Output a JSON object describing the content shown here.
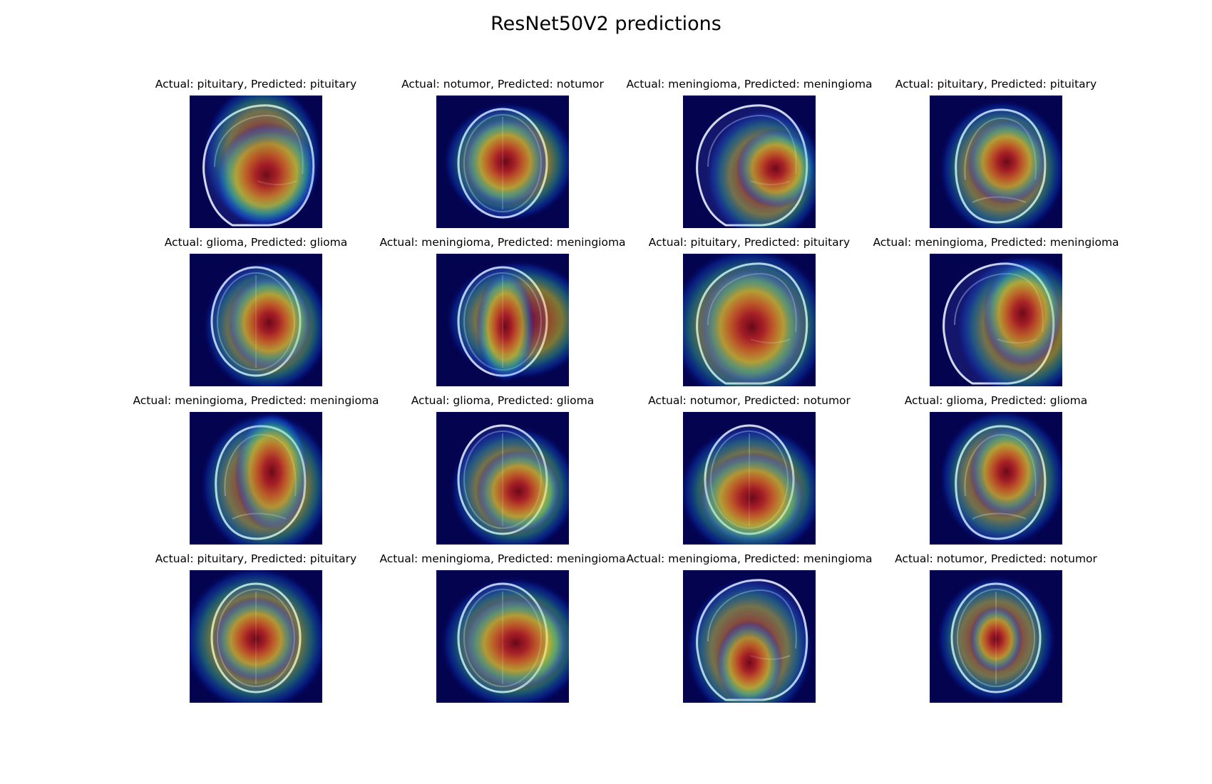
{
  "figure": {
    "title": "ResNet50V2 predictions",
    "panels": [
      {
        "title": "Actual: pituitary, Predicted: pituitary",
        "actual": "pituitary",
        "predicted": "pituitary",
        "view": "sagittal",
        "heat": [
          [
            0.58,
            0.6,
            0.38,
            0.4,
            30
          ],
          [
            0.55,
            0.45,
            0.45,
            0.55,
            0
          ]
        ]
      },
      {
        "title": "Actual: notumor, Predicted: notumor",
        "actual": "notumor",
        "predicted": "notumor",
        "view": "axial",
        "heat": [
          [
            0.52,
            0.5,
            0.32,
            0.34,
            0
          ],
          [
            0.55,
            0.5,
            0.5,
            0.45,
            0
          ]
        ]
      },
      {
        "title": "Actual: meningioma, Predicted: meningioma",
        "actual": "meningioma",
        "predicted": "meningioma",
        "view": "sagittal",
        "heat": [
          [
            0.7,
            0.55,
            0.3,
            0.3,
            0
          ],
          [
            0.62,
            0.6,
            0.45,
            0.5,
            0
          ]
        ]
      },
      {
        "title": "Actual: pituitary, Predicted: pituitary",
        "actual": "pituitary",
        "predicted": "pituitary",
        "view": "coronal",
        "heat": [
          [
            0.58,
            0.5,
            0.3,
            0.32,
            0
          ],
          [
            0.55,
            0.55,
            0.48,
            0.52,
            0
          ]
        ]
      },
      {
        "title": "Actual: glioma, Predicted: glioma",
        "actual": "glioma",
        "predicted": "glioma",
        "view": "axial",
        "heat": [
          [
            0.6,
            0.52,
            0.32,
            0.36,
            0
          ],
          [
            0.58,
            0.55,
            0.48,
            0.5,
            0
          ]
        ]
      },
      {
        "title": "Actual: meningioma, Predicted: meningioma",
        "actual": "meningioma",
        "predicted": "meningioma",
        "view": "axial",
        "heat": [
          [
            0.52,
            0.55,
            0.22,
            0.42,
            0
          ],
          [
            0.62,
            0.5,
            0.55,
            0.45,
            0
          ]
        ]
      },
      {
        "title": "Actual: pituitary, Predicted: pituitary",
        "actual": "pituitary",
        "predicted": "pituitary",
        "view": "sagittal",
        "heat": [
          [
            0.52,
            0.55,
            0.4,
            0.45,
            0
          ],
          [
            0.5,
            0.55,
            0.6,
            0.6,
            0
          ]
        ]
      },
      {
        "title": "Actual: meningioma, Predicted: meningioma",
        "actual": "meningioma",
        "predicted": "meningioma",
        "view": "sagittal",
        "heat": [
          [
            0.7,
            0.45,
            0.3,
            0.4,
            0
          ],
          [
            0.7,
            0.55,
            0.5,
            0.55,
            0
          ]
        ]
      },
      {
        "title": "Actual: meningioma, Predicted: meningioma",
        "actual": "meningioma",
        "predicted": "meningioma",
        "view": "coronal",
        "heat": [
          [
            0.62,
            0.45,
            0.28,
            0.45,
            0
          ],
          [
            0.58,
            0.55,
            0.5,
            0.55,
            0
          ]
        ]
      },
      {
        "title": "Actual: glioma, Predicted: glioma",
        "actual": "glioma",
        "predicted": "glioma",
        "view": "axial",
        "heat": [
          [
            0.62,
            0.6,
            0.32,
            0.32,
            0
          ],
          [
            0.58,
            0.58,
            0.48,
            0.48,
            0
          ]
        ]
      },
      {
        "title": "Actual: notumor, Predicted: notumor",
        "actual": "notumor",
        "predicted": "notumor",
        "view": "axial",
        "heat": [
          [
            0.52,
            0.65,
            0.4,
            0.35,
            0
          ],
          [
            0.52,
            0.6,
            0.55,
            0.5,
            0
          ]
        ]
      },
      {
        "title": "Actual: glioma, Predicted: glioma",
        "actual": "glioma",
        "predicted": "glioma",
        "view": "coronal",
        "heat": [
          [
            0.58,
            0.45,
            0.28,
            0.34,
            0
          ],
          [
            0.55,
            0.5,
            0.48,
            0.52,
            0
          ]
        ]
      },
      {
        "title": "Actual: pituitary, Predicted: pituitary",
        "actual": "pituitary",
        "predicted": "pituitary",
        "view": "axial",
        "heat": [
          [
            0.5,
            0.52,
            0.32,
            0.32,
            0
          ],
          [
            0.5,
            0.52,
            0.55,
            0.55,
            0
          ]
        ]
      },
      {
        "title": "Actual: meningioma, Predicted: meningioma",
        "actual": "meningioma",
        "predicted": "meningioma",
        "view": "axial",
        "heat": [
          [
            0.6,
            0.55,
            0.4,
            0.35,
            0
          ],
          [
            0.58,
            0.55,
            0.55,
            0.5,
            0
          ]
        ]
      },
      {
        "title": "Actual: meningioma, Predicted: meningioma",
        "actual": "meningioma",
        "predicted": "meningioma",
        "view": "sagittal",
        "heat": [
          [
            0.5,
            0.7,
            0.25,
            0.32,
            0
          ],
          [
            0.5,
            0.6,
            0.48,
            0.55,
            0
          ]
        ]
      },
      {
        "title": "Actual: notumor, Predicted: notumor",
        "actual": "notumor",
        "predicted": "notumor",
        "view": "axial",
        "heat": [
          [
            0.5,
            0.52,
            0.2,
            0.25,
            0
          ],
          [
            0.5,
            0.52,
            0.45,
            0.48,
            0
          ]
        ]
      }
    ]
  }
}
